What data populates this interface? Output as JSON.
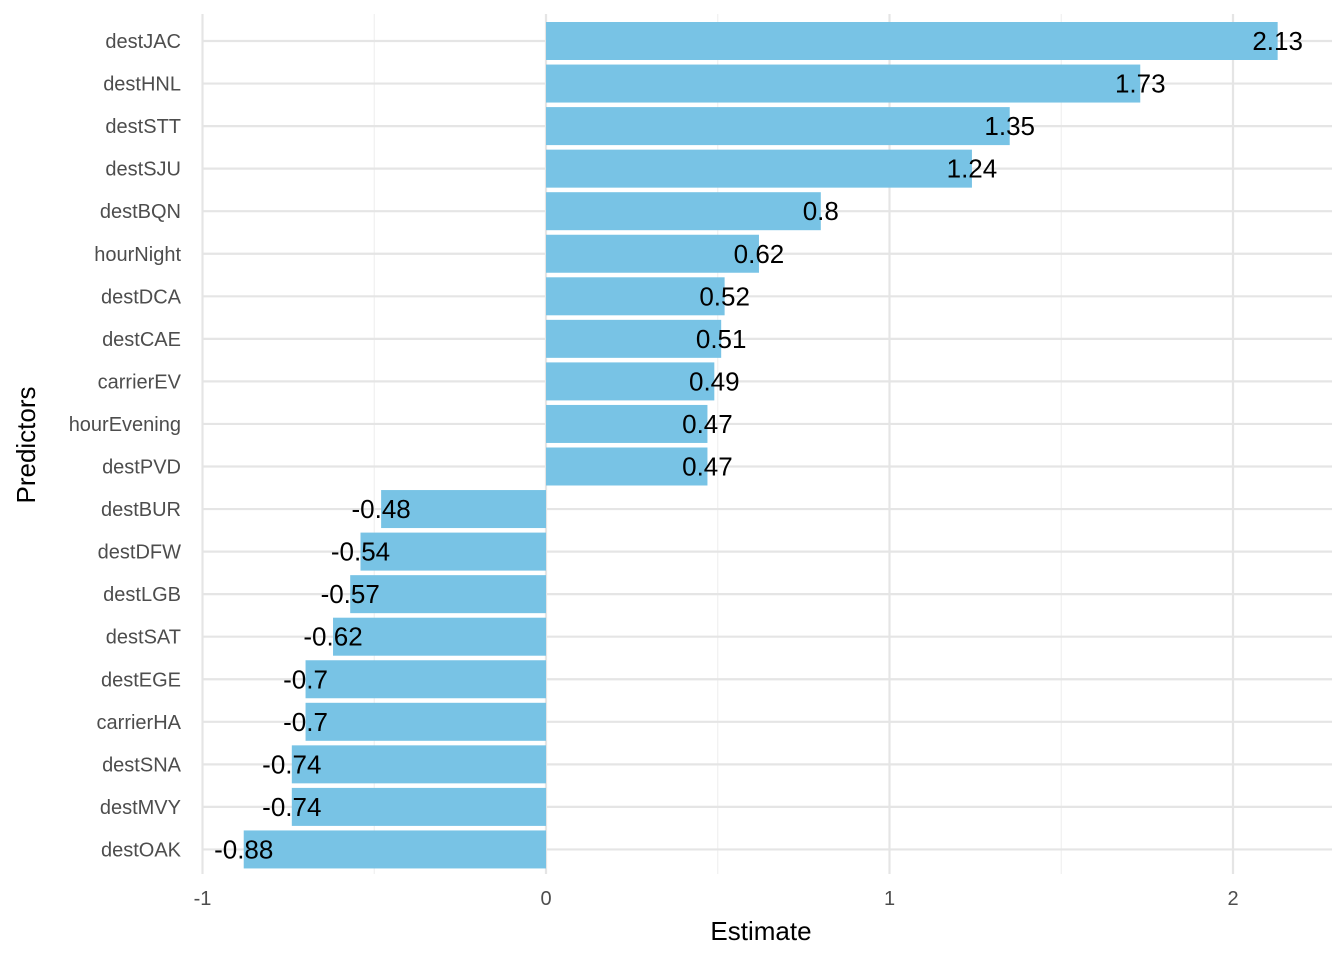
{
  "chart_data": {
    "type": "bar",
    "orientation": "horizontal",
    "title": "",
    "xlabel": "Estimate",
    "ylabel": "Predictors",
    "xlim": [
      -1,
      2.3
    ],
    "x_ticks": [
      -1,
      0,
      1,
      2
    ],
    "x_tick_labels": [
      "-1",
      "0",
      "1",
      "2"
    ],
    "grid": true,
    "bar_color": "#78C3E5",
    "categories": [
      "destJAC",
      "destHNL",
      "destSTT",
      "destSJU",
      "destBQN",
      "hourNight",
      "destDCA",
      "destCAE",
      "carrierEV",
      "hourEvening",
      "destPVD",
      "destBUR",
      "destDFW",
      "destLGB",
      "destSAT",
      "destEGE",
      "carrierHA",
      "destSNA",
      "destMVY",
      "destOAK"
    ],
    "values": [
      2.13,
      1.73,
      1.35,
      1.24,
      0.8,
      0.62,
      0.52,
      0.51,
      0.49,
      0.47,
      0.47,
      -0.48,
      -0.54,
      -0.57,
      -0.62,
      -0.7,
      -0.7,
      -0.74,
      -0.74,
      -0.88
    ],
    "value_labels": [
      "2.13",
      "1.73",
      "1.35",
      "1.24",
      "0.8",
      "0.62",
      "0.52",
      "0.51",
      "0.49",
      "0.47",
      "0.47",
      "-0.48",
      "-0.54",
      "-0.57",
      "-0.62",
      "-0.7",
      "-0.7",
      "-0.74",
      "-0.74",
      "-0.88"
    ]
  }
}
